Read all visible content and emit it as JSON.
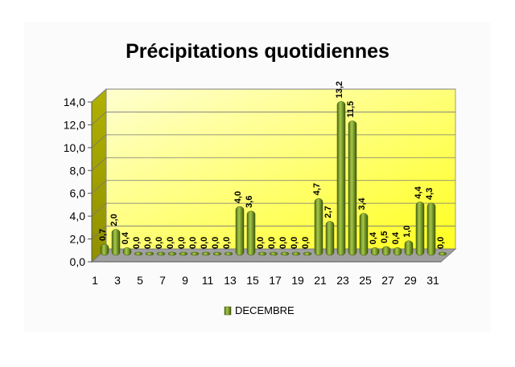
{
  "chart_data": {
    "type": "bar",
    "title": "Précipitations quotidiennes",
    "categories": [
      "1",
      null,
      "3",
      null,
      "5",
      null,
      "7",
      null,
      "9",
      null,
      "11",
      null,
      "13",
      null,
      "15",
      null,
      "17",
      null,
      "19",
      null,
      "21",
      null,
      "23",
      null,
      "25",
      null,
      "27",
      null,
      "29",
      null,
      "31"
    ],
    "series": [
      {
        "name": "DECEMBRE",
        "color": "#7a9a2a",
        "values": [
          0.7,
          2.0,
          0.4,
          0,
          0,
          0,
          0,
          0,
          0,
          0,
          0,
          0,
          4.0,
          3.6,
          0,
          0,
          0,
          0,
          0,
          4.7,
          2.7,
          13.2,
          11.5,
          3.4,
          0.4,
          0.5,
          0.4,
          1.0,
          4.4,
          4.3,
          0
        ],
        "value_labels": [
          "0,7",
          "2,0",
          "0,4",
          "0,0",
          "0,0",
          "0,0",
          "0,0",
          "0,0",
          "0,0",
          "0,0",
          "0,0",
          "0,0",
          "4,0",
          "3,6",
          "0,0",
          "0,0",
          "0,0",
          "0,0",
          "0,0",
          "4,7",
          "2,7",
          "13,2",
          "11,5",
          "3,4",
          "0,4",
          "0,5",
          "0,4",
          "1,0",
          "4,4",
          "4,3",
          "0,0"
        ]
      }
    ],
    "ylim": [
      0,
      14
    ],
    "yticks": [
      {
        "value": 0,
        "label": "0,0"
      },
      {
        "value": 2,
        "label": "2,0"
      },
      {
        "value": 4,
        "label": "4,0"
      },
      {
        "value": 6,
        "label": "6,0"
      },
      {
        "value": 8,
        "label": "8,0"
      },
      {
        "value": 10,
        "label": "10,0"
      },
      {
        "value": 12,
        "label": "12,0"
      },
      {
        "value": 14,
        "label": "14,0"
      }
    ],
    "legend": "bottom"
  }
}
